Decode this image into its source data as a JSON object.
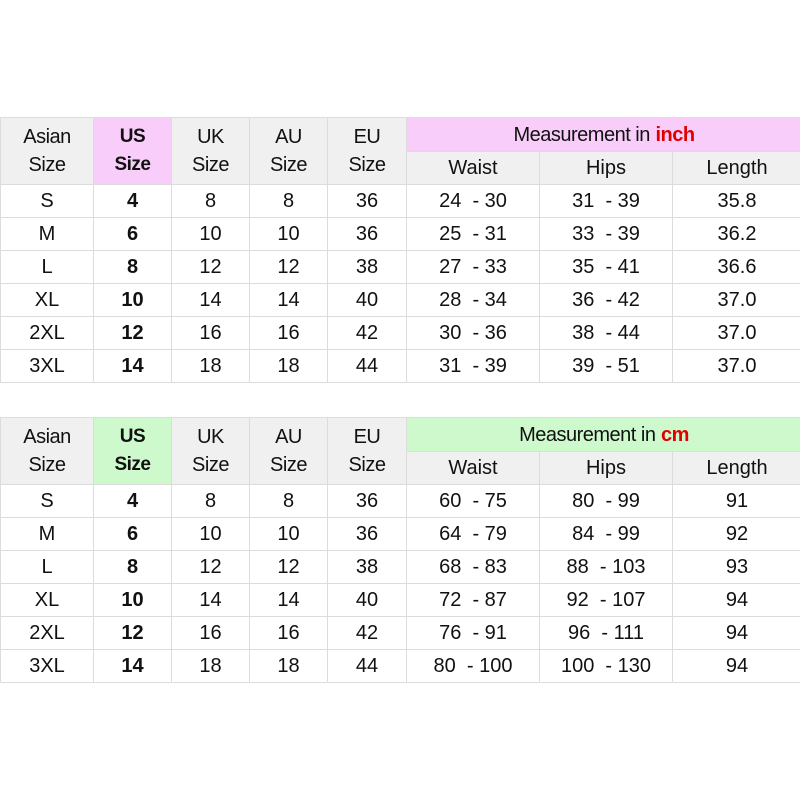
{
  "header_labels": {
    "asian": [
      "Asian",
      "Size"
    ],
    "us": [
      "US",
      "Size"
    ],
    "uk": [
      "UK",
      "Size"
    ],
    "au": [
      "AU",
      "Size"
    ],
    "eu": [
      "EU",
      "Size"
    ],
    "measurement_prefix": "Measurement in",
    "waist": "Waist",
    "hips": "Hips",
    "length": "Length"
  },
  "tables": [
    {
      "unit": "inch",
      "accent": "#f9cdf9",
      "rows": [
        {
          "asian": "S",
          "us": "4",
          "uk": "8",
          "au": "8",
          "eu": "36",
          "waist": "24  - 30",
          "hips": "31  - 39",
          "length": "35.8"
        },
        {
          "asian": "M",
          "us": "6",
          "uk": "10",
          "au": "10",
          "eu": "36",
          "waist": "25  - 31",
          "hips": "33  - 39",
          "length": "36.2"
        },
        {
          "asian": "L",
          "us": "8",
          "uk": "12",
          "au": "12",
          "eu": "38",
          "waist": "27  - 33",
          "hips": "35  - 41",
          "length": "36.6"
        },
        {
          "asian": "XL",
          "us": "10",
          "uk": "14",
          "au": "14",
          "eu": "40",
          "waist": "28  - 34",
          "hips": "36  - 42",
          "length": "37.0"
        },
        {
          "asian": "2XL",
          "us": "12",
          "uk": "16",
          "au": "16",
          "eu": "42",
          "waist": "30  - 36",
          "hips": "38  - 44",
          "length": "37.0"
        },
        {
          "asian": "3XL",
          "us": "14",
          "uk": "18",
          "au": "18",
          "eu": "44",
          "waist": "31  - 39",
          "hips": "39  - 51",
          "length": "37.0"
        }
      ]
    },
    {
      "unit": "cm",
      "accent": "#cdf9cd",
      "rows": [
        {
          "asian": "S",
          "us": "4",
          "uk": "8",
          "au": "8",
          "eu": "36",
          "waist": "60  - 75",
          "hips": "80  - 99",
          "length": "91"
        },
        {
          "asian": "M",
          "us": "6",
          "uk": "10",
          "au": "10",
          "eu": "36",
          "waist": "64  - 79",
          "hips": "84  - 99",
          "length": "92"
        },
        {
          "asian": "L",
          "us": "8",
          "uk": "12",
          "au": "12",
          "eu": "38",
          "waist": "68  - 83",
          "hips": "88  - 103",
          "length": "93"
        },
        {
          "asian": "XL",
          "us": "10",
          "uk": "14",
          "au": "14",
          "eu": "40",
          "waist": "72  - 87",
          "hips": "92  - 107",
          "length": "94"
        },
        {
          "asian": "2XL",
          "us": "12",
          "uk": "16",
          "au": "16",
          "eu": "42",
          "waist": "76  - 91",
          "hips": "96  - 111",
          "length": "94"
        },
        {
          "asian": "3XL",
          "us": "14",
          "uk": "18",
          "au": "18",
          "eu": "44",
          "waist": "80  - 100",
          "hips": "100  - 130",
          "length": "94"
        }
      ]
    }
  ]
}
